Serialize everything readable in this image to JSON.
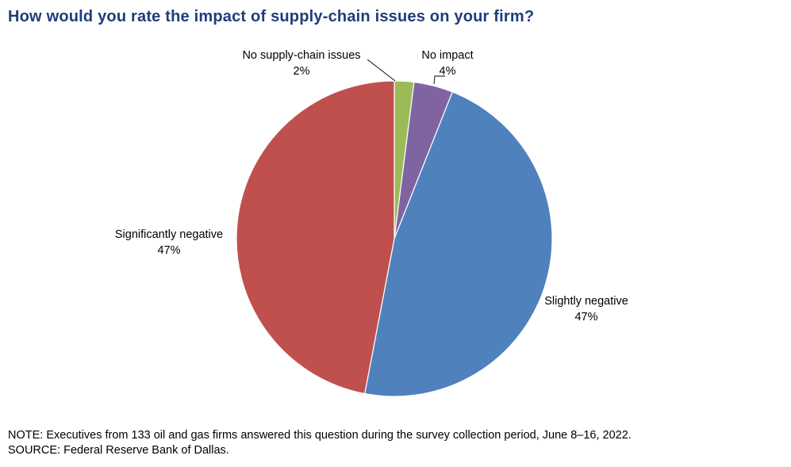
{
  "chart_data": {
    "type": "pie",
    "title": "How would you rate the impact of supply-chain issues on your firm?",
    "slices": [
      {
        "label": "No supply-chain issues",
        "value": 2,
        "value_label": "2%",
        "color": "#9bbb59"
      },
      {
        "label": "No impact",
        "value": 4,
        "value_label": "4%",
        "color": "#8064a2"
      },
      {
        "label": "Slightly negative",
        "value": 47,
        "value_label": "47%",
        "color": "#4f81bd"
      },
      {
        "label": "Significantly negative",
        "value": 47,
        "value_label": "47%",
        "color": "#c0504d"
      }
    ]
  },
  "notes": {
    "note": "NOTE: Executives from 133 oil and gas firms answered this question during the survey collection period, June 8–16, 2022.",
    "source": "SOURCE: Federal Reserve Bank of Dallas."
  }
}
